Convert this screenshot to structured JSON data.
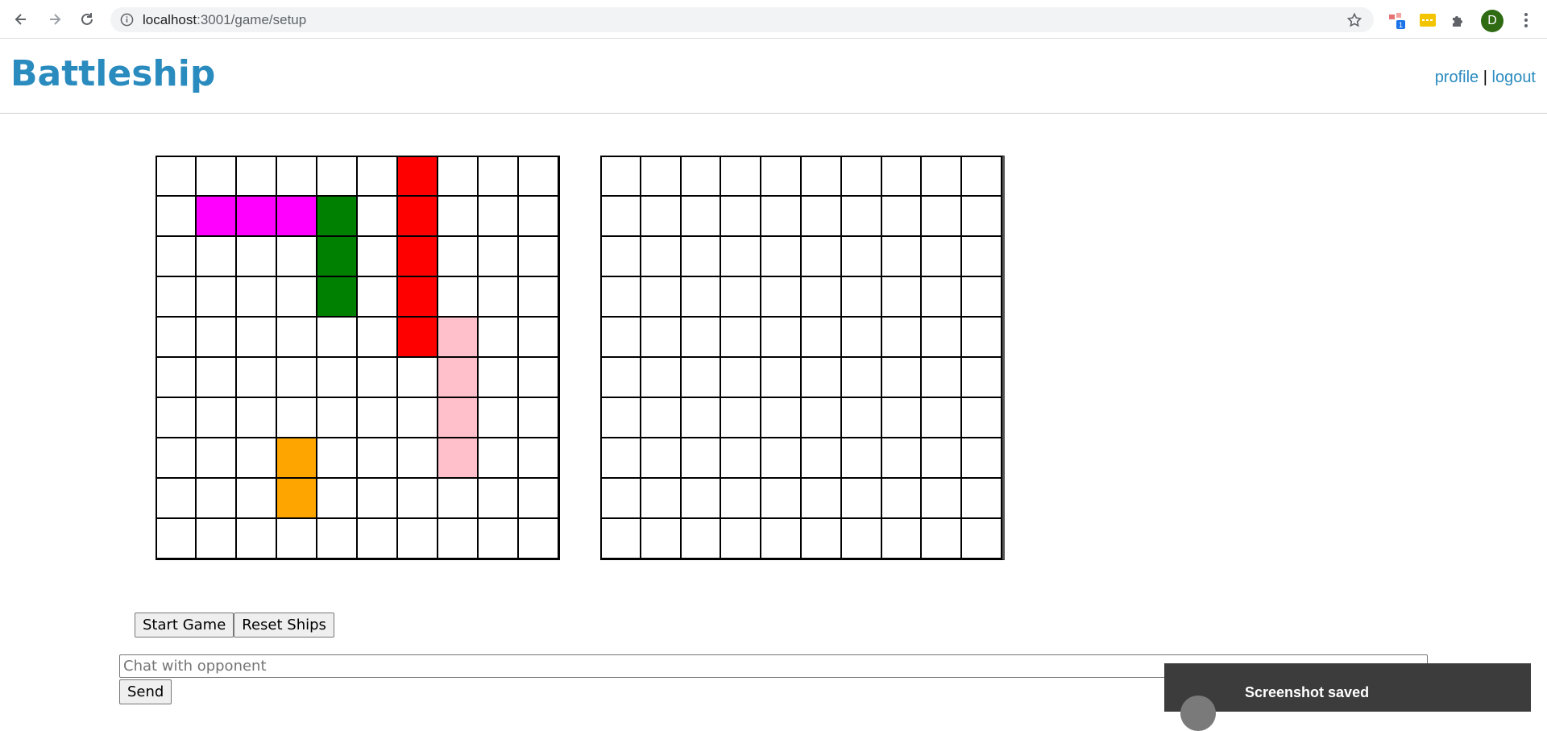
{
  "browser": {
    "url_host": "localhost",
    "url_path": ":3001/game/setup",
    "profile_initial": "D",
    "extension_badge": "1"
  },
  "header": {
    "title": "Battleship",
    "profile_link": "profile",
    "separator": "|",
    "logout_link": "logout"
  },
  "boards": {
    "rows": 10,
    "cols": 10,
    "own_board_ships": [
      {
        "color": "#ff00ff",
        "cells": [
          [
            1,
            1
          ],
          [
            1,
            2
          ],
          [
            1,
            3
          ]
        ]
      },
      {
        "color": "#008000",
        "cells": [
          [
            1,
            4
          ],
          [
            2,
            4
          ],
          [
            3,
            4
          ]
        ]
      },
      {
        "color": "#ff0000",
        "cells": [
          [
            0,
            6
          ],
          [
            1,
            6
          ],
          [
            2,
            6
          ],
          [
            3,
            6
          ],
          [
            4,
            6
          ]
        ]
      },
      {
        "color": "#ffc0cb",
        "cells": [
          [
            4,
            7
          ],
          [
            5,
            7
          ],
          [
            6,
            7
          ],
          [
            7,
            7
          ]
        ]
      },
      {
        "color": "#ffa500",
        "cells": [
          [
            7,
            3
          ],
          [
            8,
            3
          ]
        ]
      }
    ]
  },
  "controls": {
    "start_label": "Start Game",
    "reset_label": "Reset Ships",
    "chat_placeholder": "Chat with opponent",
    "send_label": "Send"
  },
  "toast": {
    "title": "Screenshot saved"
  }
}
